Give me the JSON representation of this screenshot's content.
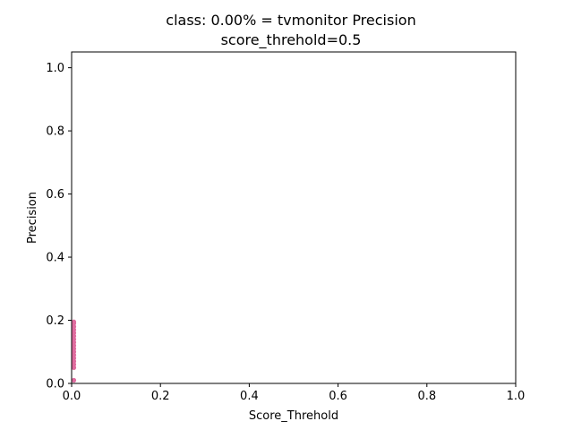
{
  "chart_data": {
    "type": "scatter",
    "title": "class: 0.00% = tvmonitor Precision",
    "subtitle": "score_threhold=0.5",
    "xlabel": "Score_Threhold",
    "ylabel": "Precision",
    "xlim": [
      0.0,
      1.0
    ],
    "ylim": [
      0.0,
      1.05
    ],
    "xticks": [
      "0.0",
      "0.2",
      "0.4",
      "0.6",
      "0.8",
      "1.0"
    ],
    "yticks": [
      "0.0",
      "0.2",
      "0.4",
      "0.6",
      "0.8",
      "1.0"
    ],
    "grid": false,
    "series": [
      {
        "color": "#e06c9f",
        "x": [
          0.001,
          0.001,
          0.001,
          0.001,
          0.001,
          0.001,
          0.001,
          0.001,
          0.001,
          0.001,
          0.001,
          0.001,
          0.001,
          0.001,
          0.001,
          0.001,
          0.001
        ],
        "y": [
          0.01,
          0.05,
          0.06,
          0.07,
          0.08,
          0.09,
          0.1,
          0.11,
          0.12,
          0.13,
          0.14,
          0.15,
          0.16,
          0.17,
          0.18,
          0.19,
          0.195
        ]
      }
    ]
  }
}
